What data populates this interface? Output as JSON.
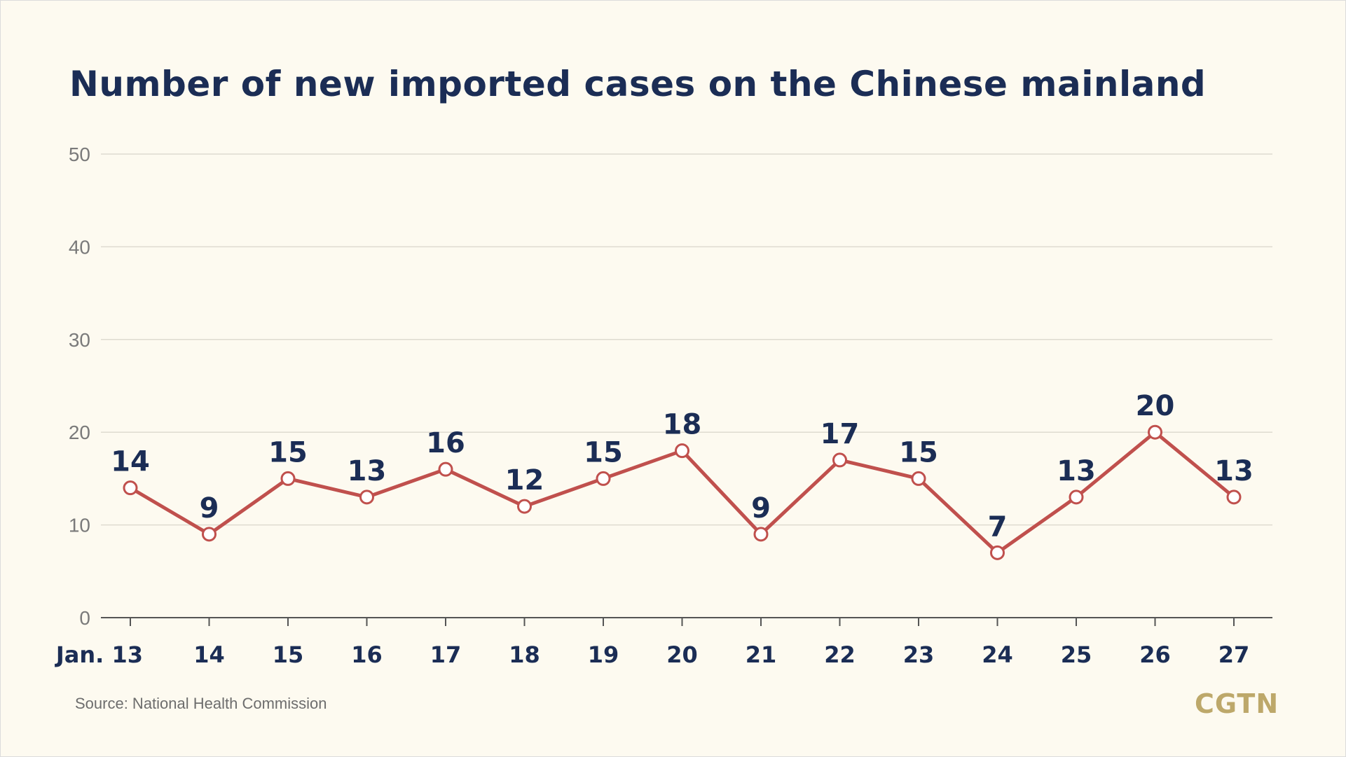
{
  "chart_data": {
    "type": "line",
    "title": "Number of new imported cases on the Chinese mainland",
    "categories": [
      "Jan. 13",
      "14",
      "15",
      "16",
      "17",
      "18",
      "19",
      "20",
      "21",
      "22",
      "23",
      "24",
      "25",
      "26",
      "27"
    ],
    "series": [
      {
        "values": [
          14,
          9,
          15,
          13,
          16,
          12,
          15,
          18,
          9,
          17,
          15,
          7,
          13,
          20,
          13
        ]
      }
    ],
    "ylim": [
      0,
      50
    ],
    "yticks": [
      0,
      10,
      20,
      30,
      40,
      50
    ],
    "grid": true,
    "data_labels": true
  },
  "source": "Source: National Health Commission",
  "logo": "CGTN",
  "colors": {
    "line": "#c0504d",
    "title": "#1b2d55",
    "labels": "#1b2d55",
    "grid": "#dedbd0",
    "background": "#fdfaf0",
    "logo": "#bda86a"
  }
}
